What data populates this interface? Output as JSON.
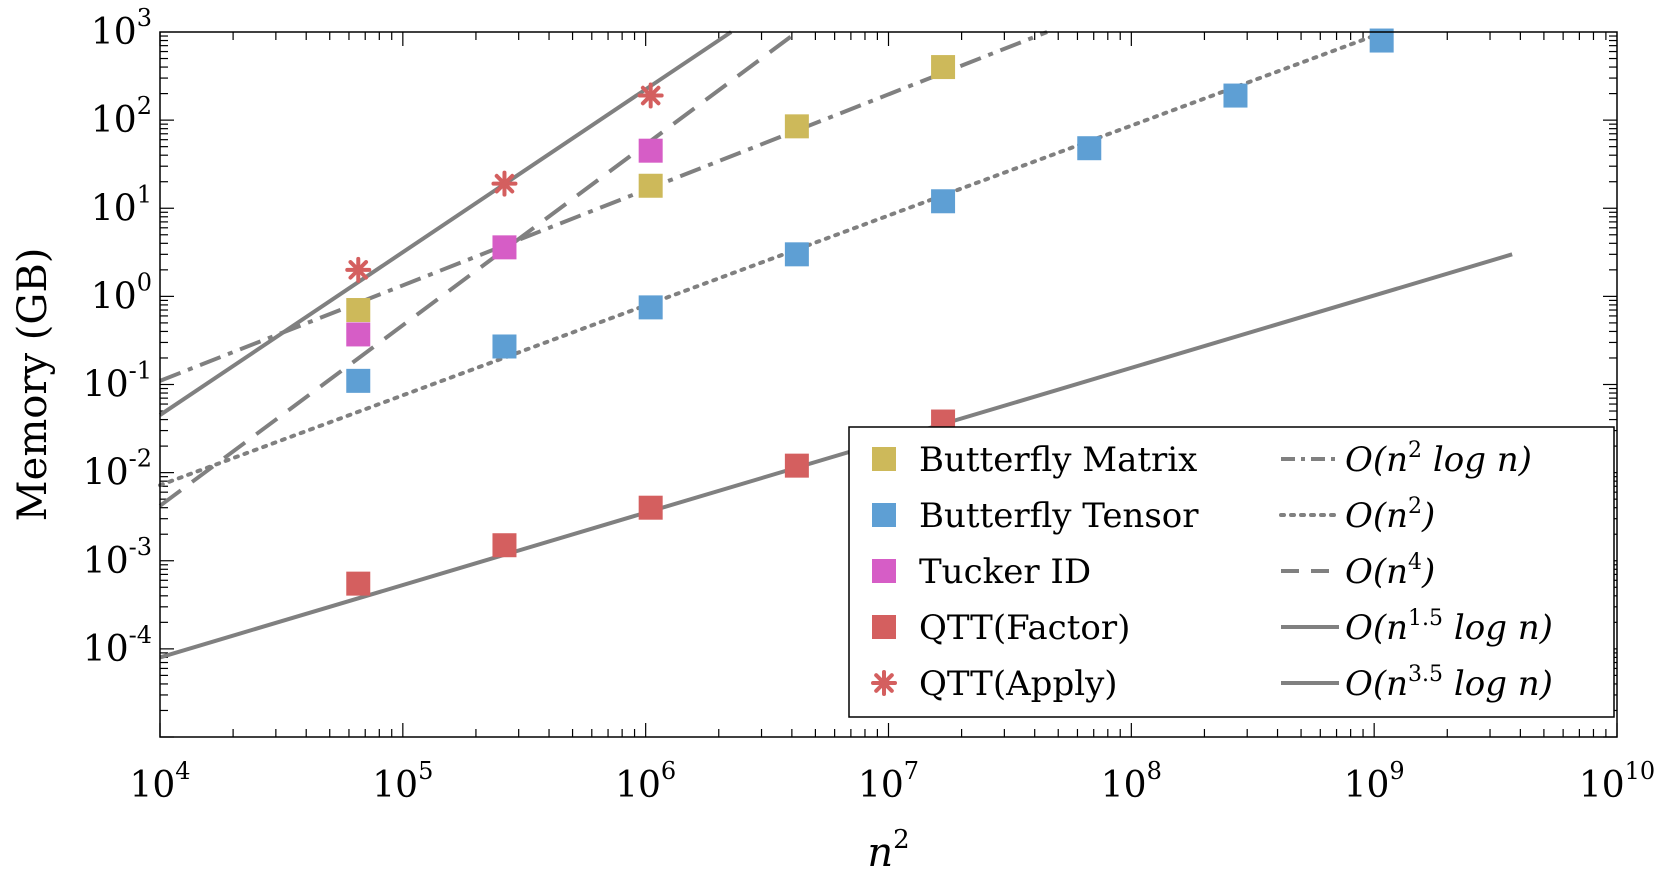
{
  "chart_data": {
    "type": "scatter",
    "xscale": "log",
    "yscale": "log",
    "xlim": [
      10000,
      10000000000
    ],
    "ylim": [
      1e-05,
      1000
    ],
    "xlabel": {
      "base": "n",
      "sup": "2"
    },
    "ylabel": "Memory (GB)",
    "x_ticks": [
      {
        "value": 10000,
        "base": "10",
        "exp": "4"
      },
      {
        "value": 100000,
        "base": "10",
        "exp": "5"
      },
      {
        "value": 1000000,
        "base": "10",
        "exp": "6"
      },
      {
        "value": 10000000,
        "base": "10",
        "exp": "7"
      },
      {
        "value": 100000000,
        "base": "10",
        "exp": "8"
      },
      {
        "value": 1000000000,
        "base": "10",
        "exp": "9"
      },
      {
        "value": 10000000000,
        "base": "10",
        "exp": "10"
      }
    ],
    "y_ticks": [
      {
        "value": 0.0001,
        "base": "10",
        "exp": "-4"
      },
      {
        "value": 0.001,
        "base": "10",
        "exp": "-3"
      },
      {
        "value": 0.01,
        "base": "10",
        "exp": "-2"
      },
      {
        "value": 0.1,
        "base": "10",
        "exp": "-1"
      },
      {
        "value": 1,
        "base": "10",
        "exp": "0"
      },
      {
        "value": 10,
        "base": "10",
        "exp": "1"
      },
      {
        "value": 100,
        "base": "10",
        "exp": "2"
      },
      {
        "value": 1000,
        "base": "10",
        "exp": "3"
      }
    ],
    "series": [
      {
        "name": "Butterfly Matrix",
        "marker": "square",
        "color": "#cdb95a",
        "x": [
          65536,
          1048576,
          4194304,
          16777216
        ],
        "y": [
          0.7,
          18,
          85,
          400
        ]
      },
      {
        "name": "Butterfly Tensor",
        "marker": "square",
        "color": "#5e9fd4",
        "x": [
          65536,
          262144,
          1048576,
          4194304,
          16777216,
          67108864,
          268435456,
          1073741824
        ],
        "y": [
          0.11,
          0.27,
          0.75,
          3.0,
          12,
          48,
          190,
          800
        ]
      },
      {
        "name": "Tucker ID",
        "marker": "square",
        "color": "#d65dc6",
        "x": [
          65536,
          262144,
          1048576
        ],
        "y": [
          0.37,
          3.6,
          45
        ]
      },
      {
        "name": "QTT(Factor)",
        "marker": "square",
        "color": "#d45f5f",
        "x": [
          65536,
          262144,
          1048576,
          4194304,
          16777216
        ],
        "y": [
          0.00055,
          0.0015,
          0.004,
          0.012,
          0.038
        ]
      },
      {
        "name": "QTT(Apply)",
        "marker": "asterisk",
        "color": "#d45f5f",
        "x": [
          65536,
          262144,
          1048576
        ],
        "y": [
          2.0,
          19,
          190
        ]
      }
    ],
    "reference_lines": [
      {
        "name": "O(n^2 log n)",
        "style": "dashdot",
        "color": "#808080",
        "x": [
          10000,
          45000000
        ],
        "y": [
          0.11,
          1000
        ]
      },
      {
        "name": "O(n^2)",
        "style": "dotted",
        "color": "#808080",
        "x": [
          10000,
          1100000000
        ],
        "y": [
          0.0072,
          1000
        ]
      },
      {
        "name": "O(n^4)",
        "style": "dashed",
        "color": "#808080",
        "x": [
          10000,
          4200000
        ],
        "y": [
          0.0042,
          1000
        ]
      },
      {
        "name": "O(n^1.5 log n)",
        "style": "solid",
        "color": "#808080",
        "x": [
          10000,
          3700000000
        ],
        "y": [
          8e-05,
          3.0
        ]
      },
      {
        "name": "O(n^3.5 log n)",
        "style": "solid",
        "color": "#808080",
        "x": [
          10000,
          2250000
        ],
        "y": [
          0.045,
          1000
        ]
      }
    ],
    "legend": {
      "placement": "bottom-right",
      "entries": [
        {
          "label": "Butterfly Matrix",
          "marker": "square",
          "color": "#cdb95a"
        },
        {
          "label": "Butterfly Tensor",
          "marker": "square",
          "color": "#5e9fd4"
        },
        {
          "label": "Tucker ID",
          "marker": "square",
          "color": "#d65dc6"
        },
        {
          "label": "QTT(Factor)",
          "marker": "square",
          "color": "#d45f5f"
        },
        {
          "label": "QTT(Apply)",
          "marker": "asterisk",
          "color": "#d45f5f"
        }
      ],
      "reference_entries": [
        {
          "style": "dashdot",
          "pre": "O(",
          "base": "n",
          "sup": "2",
          "post": " log n)"
        },
        {
          "style": "dotted",
          "pre": "O(",
          "base": "n",
          "sup": "2",
          "post": ")"
        },
        {
          "style": "dashed",
          "pre": "O(",
          "base": "n",
          "sup": "4",
          "post": ")"
        },
        {
          "style": "solid",
          "pre": "O(",
          "base": "n",
          "sup": "1.5",
          "post": " log n)"
        },
        {
          "style": "solid",
          "pre": "O(",
          "base": "n",
          "sup": "3.5",
          "post": " log n)"
        }
      ]
    }
  }
}
